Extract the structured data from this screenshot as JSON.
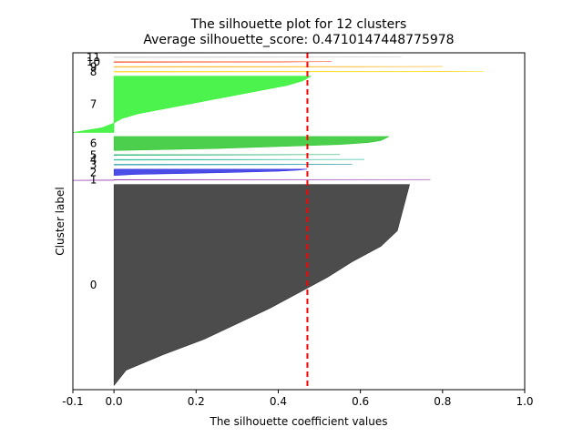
{
  "chart_data": {
    "type": "silhouette",
    "title": "The silhouette plot for 12 clusters",
    "subtitle": "Average silhouette_score: 0.4710147448775978",
    "xlabel": "The silhouette coefficient values",
    "ylabel": "Cluster label",
    "xlim": [
      -0.1,
      1.0
    ],
    "xticks": [
      "-0.1",
      "0.0",
      "0.2",
      "0.4",
      "0.6",
      "0.8",
      "1.0"
    ],
    "xtick_values": [
      -0.1,
      0.0,
      0.2,
      0.4,
      0.6,
      0.8,
      1.0
    ],
    "average_score": 0.4710147448775978,
    "average_line_color": "#ff0000",
    "grid": false,
    "clusters": [
      {
        "label": "0",
        "size": 500,
        "color": "#000000",
        "max": 0.72,
        "min": 0.0,
        "profile": [
          0.72,
          0.71,
          0.7,
          0.69,
          0.65,
          0.58,
          0.52,
          0.45,
          0.38,
          0.3,
          0.22,
          0.12,
          0.03,
          0.0
        ]
      },
      {
        "label": "1",
        "size": 2,
        "color": "#78009a",
        "max": 0.77,
        "min": -0.1,
        "profile": [
          0.77,
          0.0,
          -0.1
        ]
      },
      {
        "label": "2",
        "size": 16,
        "color": "#0000dd",
        "max": 0.47,
        "min": 0.0,
        "profile": [
          0.47,
          0.45,
          0.4,
          0.3,
          0.18,
          0.05,
          0.0
        ]
      },
      {
        "label": "3",
        "size": 2,
        "color": "#008a9a",
        "max": 0.58,
        "min": 0.0,
        "profile": [
          0.58,
          0.4,
          0.0
        ]
      },
      {
        "label": "4",
        "size": 2,
        "color": "#00aa88",
        "max": 0.61,
        "min": 0.0,
        "profile": [
          0.61,
          0.3,
          0.0
        ]
      },
      {
        "label": "5",
        "size": 2,
        "color": "#00aa55",
        "max": 0.55,
        "min": 0.0,
        "profile": [
          0.55,
          0.3,
          0.0
        ]
      },
      {
        "label": "6",
        "size": 35,
        "color": "#00bb00",
        "max": 0.67,
        "min": 0.0,
        "profile": [
          0.67,
          0.66,
          0.65,
          0.62,
          0.55,
          0.4,
          0.25,
          0.0
        ]
      },
      {
        "label": "7",
        "size": 140,
        "color": "#00ee00",
        "max": 0.48,
        "min": -0.1,
        "profile": [
          0.48,
          0.46,
          0.42,
          0.36,
          0.3,
          0.24,
          0.18,
          0.12,
          0.06,
          0.02,
          0.0,
          -0.03,
          -0.1
        ]
      },
      {
        "label": "8",
        "size": 2,
        "color": "#ffd700",
        "max": 0.9,
        "min": 0.0,
        "profile": [
          0.9,
          0.8,
          0.0
        ]
      },
      {
        "label": "9",
        "size": 2,
        "color": "#ffaa00",
        "max": 0.8,
        "min": 0.0,
        "profile": [
          0.8,
          0.6,
          0.0
        ]
      },
      {
        "label": "10",
        "size": 2,
        "color": "#ff3300",
        "max": 0.53,
        "min": 0.0,
        "profile": [
          0.53,
          0.4,
          0.0
        ]
      },
      {
        "label": "11",
        "size": 2,
        "color": "#cccccc",
        "max": 0.7,
        "min": 0.0,
        "profile": [
          0.7,
          0.5,
          0.0
        ]
      }
    ]
  }
}
